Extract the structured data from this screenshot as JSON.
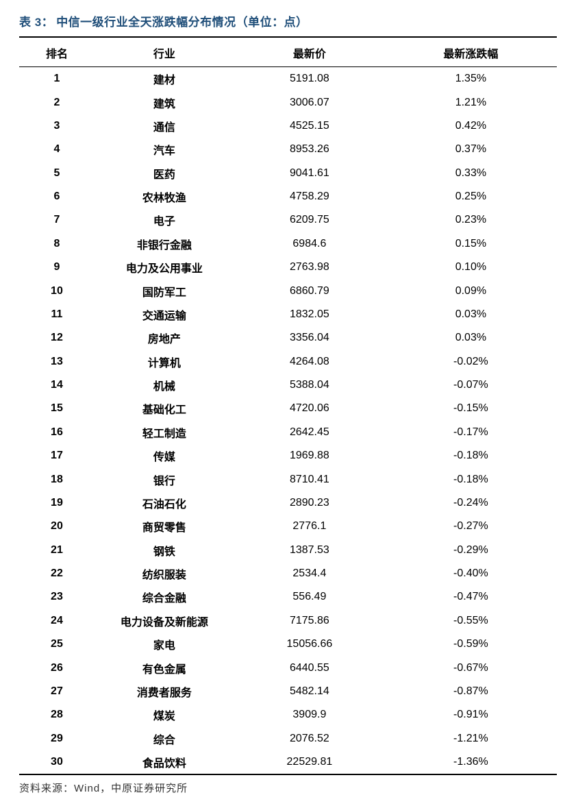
{
  "title": {
    "prefix": "表 3：",
    "text": "中信一级行业全天涨跌幅分布情况（单位：点）",
    "color": "#1f4e79",
    "fontsize": 17
  },
  "table": {
    "type": "table",
    "border_color": "#000000",
    "header_fontsize": 16,
    "cell_fontsize": 16,
    "background_color": "#ffffff",
    "text_color": "#000000",
    "columns": [
      {
        "key": "rank",
        "label": "排名",
        "width_pct": 14
      },
      {
        "key": "industry",
        "label": "行业",
        "width_pct": 26
      },
      {
        "key": "price",
        "label": "最新价",
        "width_pct": 28
      },
      {
        "key": "change",
        "label": "最新涨跌幅",
        "width_pct": 32
      }
    ],
    "rows": [
      {
        "rank": "1",
        "industry": "建材",
        "price": "5191.08",
        "change": "1.35%"
      },
      {
        "rank": "2",
        "industry": "建筑",
        "price": "3006.07",
        "change": "1.21%"
      },
      {
        "rank": "3",
        "industry": "通信",
        "price": "4525.15",
        "change": "0.42%"
      },
      {
        "rank": "4",
        "industry": "汽车",
        "price": "8953.26",
        "change": "0.37%"
      },
      {
        "rank": "5",
        "industry": "医药",
        "price": "9041.61",
        "change": "0.33%"
      },
      {
        "rank": "6",
        "industry": "农林牧渔",
        "price": "4758.29",
        "change": "0.25%"
      },
      {
        "rank": "7",
        "industry": "电子",
        "price": "6209.75",
        "change": "0.23%"
      },
      {
        "rank": "8",
        "industry": "非银行金融",
        "price": "6984.6",
        "change": "0.15%"
      },
      {
        "rank": "9",
        "industry": "电力及公用事业",
        "price": "2763.98",
        "change": "0.10%"
      },
      {
        "rank": "10",
        "industry": "国防军工",
        "price": "6860.79",
        "change": "0.09%"
      },
      {
        "rank": "11",
        "industry": "交通运输",
        "price": "1832.05",
        "change": "0.03%"
      },
      {
        "rank": "12",
        "industry": "房地产",
        "price": "3356.04",
        "change": "0.03%"
      },
      {
        "rank": "13",
        "industry": "计算机",
        "price": "4264.08",
        "change": "-0.02%"
      },
      {
        "rank": "14",
        "industry": "机械",
        "price": "5388.04",
        "change": "-0.07%"
      },
      {
        "rank": "15",
        "industry": "基础化工",
        "price": "4720.06",
        "change": "-0.15%"
      },
      {
        "rank": "16",
        "industry": "轻工制造",
        "price": "2642.45",
        "change": "-0.17%"
      },
      {
        "rank": "17",
        "industry": "传媒",
        "price": "1969.88",
        "change": "-0.18%"
      },
      {
        "rank": "18",
        "industry": "银行",
        "price": "8710.41",
        "change": "-0.18%"
      },
      {
        "rank": "19",
        "industry": "石油石化",
        "price": "2890.23",
        "change": "-0.24%"
      },
      {
        "rank": "20",
        "industry": "商贸零售",
        "price": "2776.1",
        "change": "-0.27%"
      },
      {
        "rank": "21",
        "industry": "钢铁",
        "price": "1387.53",
        "change": "-0.29%"
      },
      {
        "rank": "22",
        "industry": "纺织服装",
        "price": "2534.4",
        "change": "-0.40%"
      },
      {
        "rank": "23",
        "industry": "综合金融",
        "price": "556.49",
        "change": "-0.47%"
      },
      {
        "rank": "24",
        "industry": "电力设备及新能源",
        "price": "7175.86",
        "change": "-0.55%"
      },
      {
        "rank": "25",
        "industry": "家电",
        "price": "15056.66",
        "change": "-0.59%"
      },
      {
        "rank": "26",
        "industry": "有色金属",
        "price": "6440.55",
        "change": "-0.67%"
      },
      {
        "rank": "27",
        "industry": "消费者服务",
        "price": "5482.14",
        "change": "-0.87%"
      },
      {
        "rank": "28",
        "industry": "煤炭",
        "price": "3909.9",
        "change": "-0.91%"
      },
      {
        "rank": "29",
        "industry": "综合",
        "price": "2076.52",
        "change": "-1.21%"
      },
      {
        "rank": "30",
        "industry": "食品饮料",
        "price": "22529.81",
        "change": "-1.36%"
      }
    ]
  },
  "source": {
    "label": "资料来源：Wind，中原证券研究所",
    "fontsize": 15,
    "color": "#333333"
  }
}
